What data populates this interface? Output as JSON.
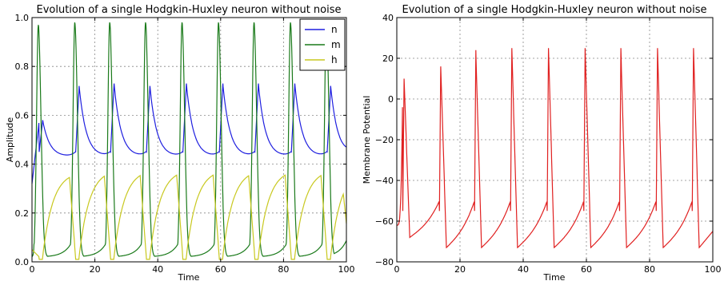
{
  "chart_data": [
    {
      "type": "line",
      "title": "Evolution of a single Hodgkin-Huxley neuron without noise",
      "xlabel": "Time",
      "ylabel": "Amplitude",
      "xlim": [
        0,
        100
      ],
      "ylim": [
        0,
        1.0
      ],
      "xticks": [
        0,
        20,
        40,
        60,
        80,
        100
      ],
      "yticks": [
        0.0,
        0.2,
        0.4,
        0.6,
        0.8,
        1.0
      ],
      "ytick_labels": [
        "0.0",
        "0.2",
        "0.4",
        "0.6",
        "0.8",
        "1.0"
      ],
      "grid": true,
      "legend": "top-right",
      "spike_times": [
        2.3,
        13.9,
        25.0,
        36.4,
        48.0,
        59.6,
        70.9,
        82.5,
        93.9
      ],
      "series": [
        {
          "name": "n",
          "color": "#1f1fdf",
          "baseline": 0.43,
          "peaks": [
            0.58,
            0.72,
            0.73,
            0.72,
            0.73,
            0.73,
            0.73,
            0.73,
            0.72
          ],
          "end_value": 0.47
        },
        {
          "name": "m",
          "color": "#1a7a1a",
          "baseline": 0.02,
          "peaks": [
            0.97,
            0.98,
            0.98,
            0.98,
            0.98,
            0.98,
            0.98,
            0.98,
            0.98
          ],
          "end_value": 0.05
        },
        {
          "name": "h",
          "color": "#c8c81e",
          "baseline": 0.01,
          "peaks": [
            0.28,
            0.37,
            0.38,
            0.38,
            0.38,
            0.38,
            0.38,
            0.38,
            0.38
          ],
          "end_value": 0.35
        }
      ]
    },
    {
      "type": "line",
      "title": "Evolution of a single Hodgkin-Huxley neuron without noise",
      "xlabel": "Time",
      "ylabel": "Membrane Potential",
      "xlim": [
        0,
        100
      ],
      "ylim": [
        -80,
        40
      ],
      "xticks": [
        0,
        20,
        40,
        60,
        80,
        100
      ],
      "yticks": [
        -80,
        -60,
        -40,
        -20,
        0,
        20,
        40
      ],
      "ytick_labels": [
        "−80",
        "−60",
        "−40",
        "−20",
        "0",
        "20",
        "40"
      ],
      "grid": true,
      "spike_times": [
        2.3,
        13.9,
        25.0,
        36.4,
        48.0,
        59.6,
        70.9,
        82.5,
        93.9
      ],
      "series": [
        {
          "color": "#e02020",
          "start_value": -62,
          "peaks": [
            10,
            16,
            24,
            25,
            25,
            25,
            25,
            25,
            25
          ],
          "troughs": [
            -68,
            -73,
            -73,
            -73,
            -73,
            -73,
            -73,
            -73,
            -73
          ],
          "end_value": -65
        }
      ]
    }
  ]
}
